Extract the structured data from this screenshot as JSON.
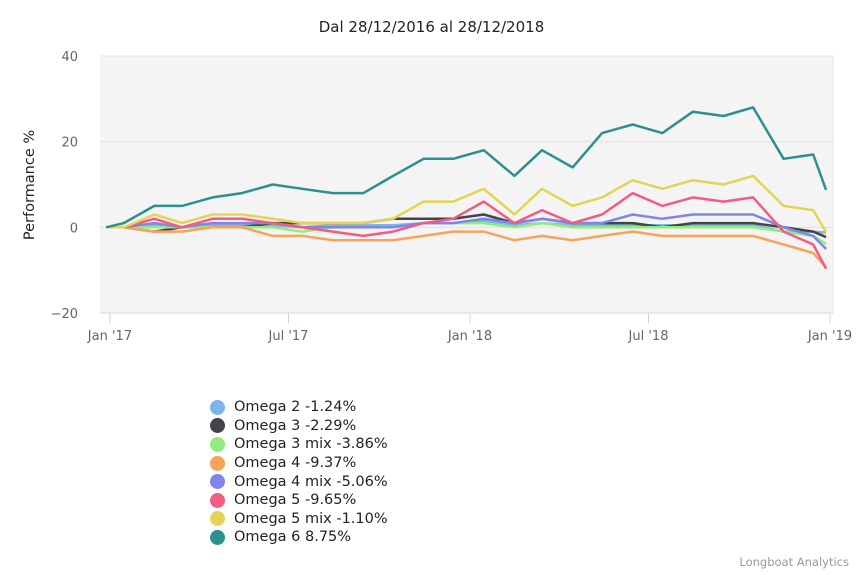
{
  "chart_data": {
    "type": "line",
    "title": "Dal 28/12/2016 al 28/12/2018",
    "ylabel": "Performance %",
    "xlabel": "",
    "ylim": [
      -20,
      40
    ],
    "yticks": [
      "40",
      "20",
      "0",
      "−20"
    ],
    "ytick_values": [
      40,
      20,
      0,
      -20
    ],
    "xticks": [
      {
        "date": "2017-01-01",
        "label": "Jan '17"
      },
      {
        "date": "2017-07-01",
        "label": "Jul '17"
      },
      {
        "date": "2018-01-01",
        "label": "Jan '18"
      },
      {
        "date": "2018-07-01",
        "label": "Jul '18"
      },
      {
        "date": "2019-01-01",
        "label": "Jan '19"
      }
    ],
    "xlim": [
      "2016-12-28",
      "2019-01-01"
    ],
    "grid": true,
    "legend_position": "bottom-left",
    "x": [
      "2016-12-28",
      "2017-01-15",
      "2017-02-15",
      "2017-03-15",
      "2017-04-15",
      "2017-05-15",
      "2017-06-15",
      "2017-07-15",
      "2017-08-15",
      "2017-09-15",
      "2017-10-15",
      "2017-11-15",
      "2017-12-15",
      "2018-01-15",
      "2018-02-15",
      "2018-03-15",
      "2018-04-15",
      "2018-05-15",
      "2018-06-15",
      "2018-07-15",
      "2018-08-15",
      "2018-09-15",
      "2018-10-15",
      "2018-11-15",
      "2018-12-15",
      "2018-12-28"
    ],
    "series": [
      {
        "name": "Omega 2",
        "label": "Omega 2 -1.24%",
        "color": "#7cb5ec",
        "values": [
          0,
          0,
          0.5,
          0,
          0.5,
          0.5,
          0.5,
          0,
          0.5,
          0.5,
          0.5,
          1,
          1,
          1.5,
          0.5,
          1,
          0.5,
          0.5,
          0.5,
          0.5,
          0.5,
          0.5,
          0.5,
          -1,
          -1,
          -1.24
        ]
      },
      {
        "name": "Omega 3",
        "label": "Omega 3 -2.29%",
        "color": "#434348",
        "values": [
          0,
          0,
          -1,
          0,
          0,
          0,
          1,
          1,
          1,
          1,
          2,
          2,
          2,
          3,
          1,
          2,
          1,
          1,
          1,
          0,
          1,
          1,
          1,
          0,
          -1,
          -2.29
        ]
      },
      {
        "name": "Omega 3 mix",
        "label": "Omega 3 mix -3.86%",
        "color": "#90ed7d",
        "values": [
          0,
          0,
          0,
          0,
          0,
          0,
          0,
          -1,
          0,
          0,
          0,
          1,
          1,
          1,
          0,
          1,
          0,
          0,
          0,
          0,
          0,
          0,
          0,
          -1,
          -2,
          -3.86
        ]
      },
      {
        "name": "Omega 4",
        "label": "Omega 4 -9.37%",
        "color": "#f7a35c",
        "values": [
          0,
          0,
          -1,
          -1,
          0,
          0,
          -2,
          -2,
          -3,
          -3,
          -3,
          -2,
          -1,
          -1,
          -3,
          -2,
          -3,
          -2,
          -1,
          -2,
          -2,
          -2,
          -2,
          -4,
          -6,
          -9.37
        ]
      },
      {
        "name": "Omega 4 mix",
        "label": "Omega 4 mix -5.06%",
        "color": "#8085e9",
        "values": [
          0,
          0,
          1,
          0,
          1,
          1,
          1,
          0,
          0,
          0,
          0,
          1,
          1,
          2,
          1,
          2,
          1,
          1,
          3,
          2,
          3,
          3,
          3,
          0,
          -2,
          -5.06
        ]
      },
      {
        "name": "Omega 5",
        "label": "Omega 5 -9.65%",
        "color": "#f15c80",
        "values": [
          0,
          0,
          2,
          0,
          2,
          2,
          1,
          0,
          -1,
          -2,
          -1,
          1,
          2,
          6,
          1,
          4,
          1,
          3,
          8,
          5,
          7,
          6,
          7,
          -1,
          -4,
          -9.65
        ]
      },
      {
        "name": "Omega 5 mix",
        "label": "Omega 5 mix -1.10%",
        "color": "#e4d354",
        "values": [
          0,
          0,
          3,
          1,
          3,
          3,
          2,
          1,
          1,
          1,
          2,
          6,
          6,
          9,
          3,
          9,
          5,
          7,
          11,
          9,
          11,
          10,
          12,
          5,
          4,
          -1.1
        ]
      },
      {
        "name": "Omega 6",
        "label": "Omega 6 8.75%",
        "color": "#2b908f",
        "values": [
          0,
          1,
          5,
          5,
          7,
          8,
          10,
          9,
          8,
          8,
          12,
          16,
          16,
          18,
          12,
          18,
          14,
          22,
          24,
          22,
          27,
          26,
          28,
          16,
          17,
          8.75
        ]
      }
    ]
  },
  "credits": "Longboat Analytics"
}
